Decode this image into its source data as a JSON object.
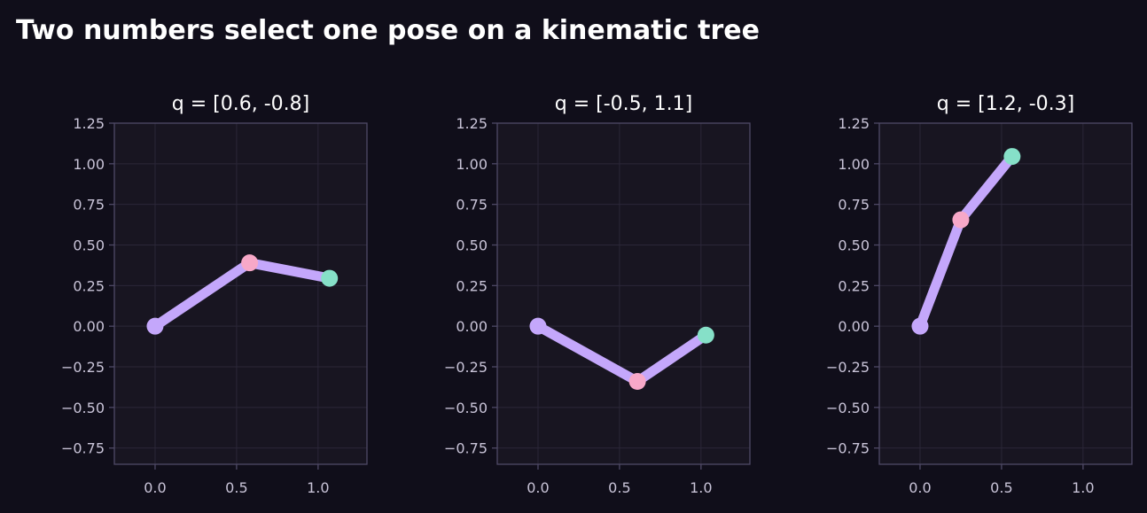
{
  "figure": {
    "title": "Two numbers select one pose on a kinematic tree"
  },
  "style": {
    "background": "#100e1a",
    "plot_background": "#181521",
    "spine_color": "#4f4a66",
    "grid_color": "#2b2738",
    "tick_label_color": "#c9c4d8",
    "link_color": "#c4a7fb",
    "base_joint_color": "#c4a7fb",
    "elbow_joint_color": "#f7a8c8",
    "end_effector_color": "#86e0c8"
  },
  "chart_data": [
    {
      "type": "line",
      "title": "q = [0.6, -0.8]",
      "xlabel": "",
      "ylabel": "",
      "xlim": [
        -0.25,
        1.3
      ],
      "ylim": [
        -0.85,
        1.25
      ],
      "xticks": [
        "0.0",
        "0.5",
        "1.0"
      ],
      "xtick_values": [
        0.0,
        0.5,
        1.0
      ],
      "yticks": [
        "1.25",
        "1.00",
        "0.75",
        "0.50",
        "0.25",
        "0.00",
        "−0.25",
        "−0.50",
        "−0.75"
      ],
      "ytick_values": [
        1.25,
        1.0,
        0.75,
        0.5,
        0.25,
        0.0,
        -0.25,
        -0.5,
        -0.75
      ],
      "grid": true,
      "series": [
        {
          "x": [
            0.0,
            0.58,
            1.07
          ],
          "y": [
            0.0,
            0.39,
            0.295
          ]
        }
      ]
    },
    {
      "type": "line",
      "title": "q = [-0.5, 1.1]",
      "xlabel": "",
      "ylabel": "",
      "xlim": [
        -0.25,
        1.3
      ],
      "ylim": [
        -0.85,
        1.25
      ],
      "xticks": [
        "0.0",
        "0.5",
        "1.0"
      ],
      "xtick_values": [
        0.0,
        0.5,
        1.0
      ],
      "yticks": [
        "1.25",
        "1.00",
        "0.75",
        "0.50",
        "0.25",
        "0.00",
        "−0.25",
        "−0.50",
        "−0.75"
      ],
      "ytick_values": [
        1.25,
        1.0,
        0.75,
        0.5,
        0.25,
        0.0,
        -0.25,
        -0.5,
        -0.75
      ],
      "grid": true,
      "series": [
        {
          "x": [
            0.0,
            0.61,
            1.03
          ],
          "y": [
            0.0,
            -0.34,
            -0.055
          ]
        }
      ]
    },
    {
      "type": "line",
      "title": "q = [1.2, -0.3]",
      "xlabel": "",
      "ylabel": "",
      "xlim": [
        -0.25,
        1.3
      ],
      "ylim": [
        -0.85,
        1.25
      ],
      "xticks": [
        "0.0",
        "0.5",
        "1.0"
      ],
      "xtick_values": [
        0.0,
        0.5,
        1.0
      ],
      "yticks": [
        "1.25",
        "1.00",
        "0.75",
        "0.50",
        "0.25",
        "0.00",
        "−0.25",
        "−0.50",
        "−0.75"
      ],
      "ytick_values": [
        1.25,
        1.0,
        0.75,
        0.5,
        0.25,
        0.0,
        -0.25,
        -0.5,
        -0.75
      ],
      "grid": true,
      "series": [
        {
          "x": [
            0.0,
            0.25,
            0.565
          ],
          "y": [
            0.0,
            0.655,
            1.045
          ]
        }
      ]
    }
  ]
}
